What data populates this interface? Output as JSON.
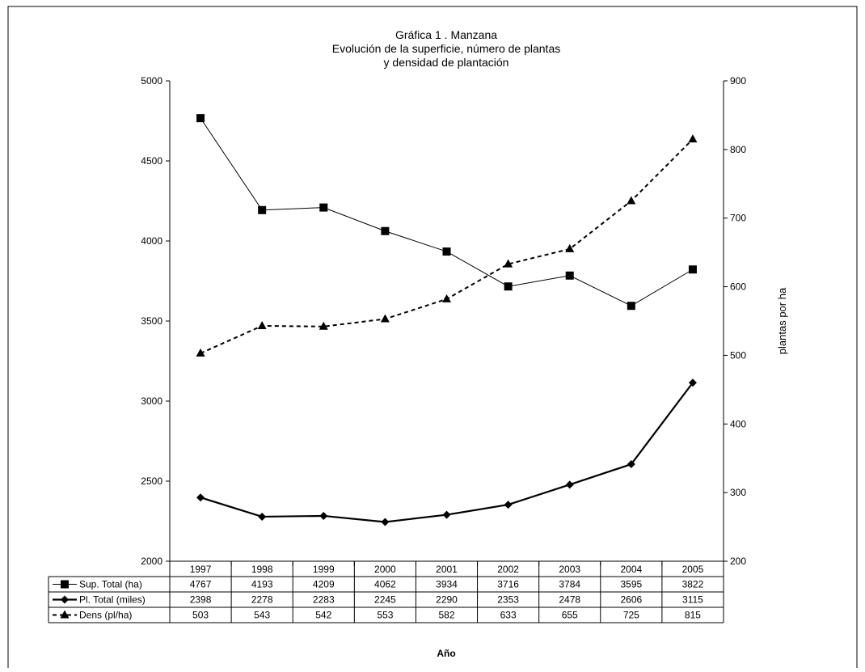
{
  "chart_data": {
    "type": "line",
    "title": [
      "Gráfica 1 . Manzana",
      "Evolución de la superficie, número de plantas",
      "y densidad de plantación"
    ],
    "xlabel": "Año",
    "ylabel_right": "plantas por ha",
    "categories": [
      "1997",
      "1998",
      "1999",
      "2000",
      "2001",
      "2002",
      "2003",
      "2004",
      "2005"
    ],
    "ylim_left": [
      2000,
      5000
    ],
    "yticks_left": [
      2000,
      2500,
      3000,
      3500,
      4000,
      4500,
      5000
    ],
    "ylim_right": [
      200,
      900
    ],
    "yticks_right": [
      200,
      300,
      400,
      500,
      600,
      700,
      800,
      900
    ],
    "grid": false,
    "legend": "data-table-below",
    "series": [
      {
        "name": "Sup. Total (ha)",
        "axis": "left",
        "marker": "square",
        "line": "solid-thin",
        "values": [
          4767,
          4193,
          4209,
          4062,
          3934,
          3716,
          3784,
          3595,
          3822
        ]
      },
      {
        "name": "Pl. Total (miles)",
        "axis": "left",
        "marker": "diamond",
        "line": "solid-thick",
        "values": [
          2398,
          2278,
          2283,
          2245,
          2290,
          2353,
          2478,
          2606,
          3115
        ]
      },
      {
        "name": "Dens (pl/ha)",
        "axis": "right",
        "marker": "triangle",
        "line": "dashed",
        "values": [
          503,
          543,
          542,
          553,
          582,
          633,
          655,
          725,
          815
        ]
      }
    ]
  }
}
